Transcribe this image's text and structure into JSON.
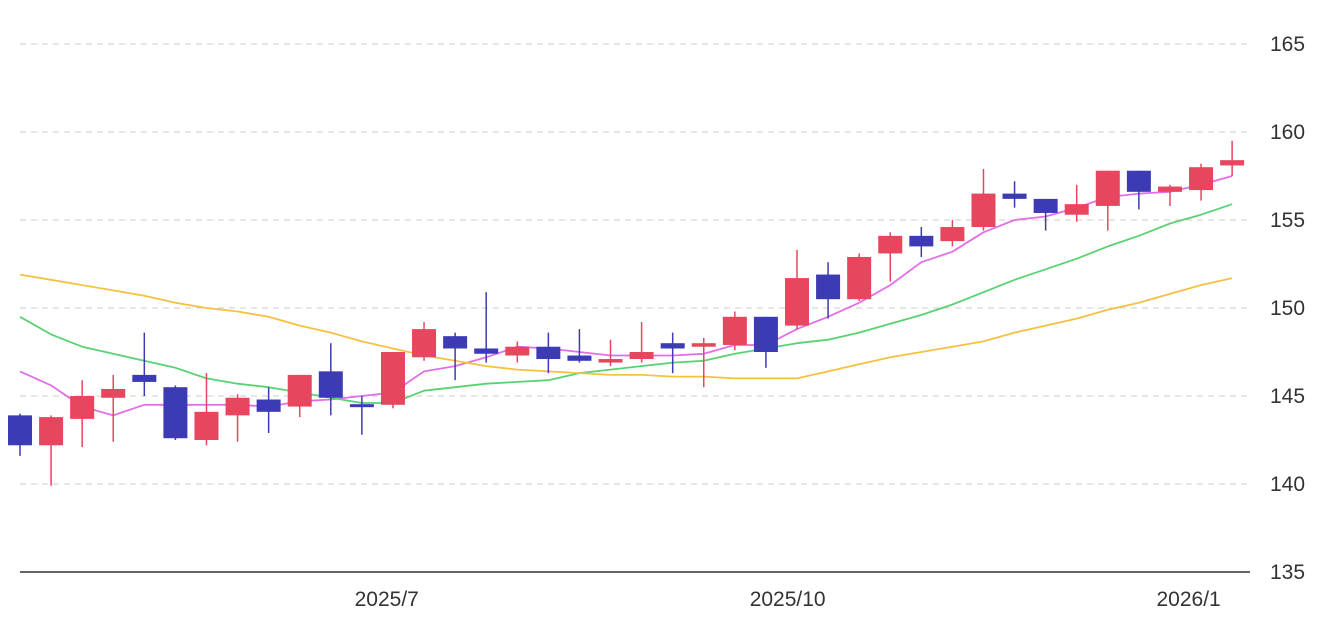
{
  "chart_data": {
    "type": "candlestick",
    "y_axis": {
      "position": "right",
      "ylim": [
        135,
        165
      ],
      "ticks": [
        "135",
        "140",
        "145",
        "150",
        "155",
        "160",
        "165"
      ]
    },
    "x_axis": {
      "ticks": [
        {
          "label": "2025/7",
          "index": 11.8
        },
        {
          "label": "2025/10",
          "index": 24.7
        },
        {
          "label": "2026/1",
          "index": 37.6
        }
      ]
    },
    "grid": {
      "horizontal": true,
      "style": "dashed"
    },
    "colors": {
      "up": "#E8455F",
      "down": "#3D3BB3",
      "ma_short": "#E36FE8",
      "ma_mid": "#5AD173",
      "ma_long": "#F5C142",
      "grid": "#CCCCCC",
      "axis": "#333333"
    },
    "candles": [
      {
        "o": 143.9,
        "h": 144.0,
        "l": 141.6,
        "c": 142.2
      },
      {
        "o": 142.2,
        "h": 143.9,
        "l": 139.9,
        "c": 143.8
      },
      {
        "o": 143.7,
        "h": 145.9,
        "l": 142.1,
        "c": 145.0
      },
      {
        "o": 144.9,
        "h": 146.2,
        "l": 142.4,
        "c": 145.4
      },
      {
        "o": 146.2,
        "h": 148.6,
        "l": 145.0,
        "c": 145.8
      },
      {
        "o": 145.5,
        "h": 145.6,
        "l": 142.5,
        "c": 142.6
      },
      {
        "o": 142.5,
        "h": 146.3,
        "l": 142.2,
        "c": 144.1
      },
      {
        "o": 143.9,
        "h": 145.1,
        "l": 142.4,
        "c": 144.9
      },
      {
        "o": 144.8,
        "h": 145.5,
        "l": 142.9,
        "c": 144.1
      },
      {
        "o": 144.4,
        "h": 146.2,
        "l": 143.8,
        "c": 146.2
      },
      {
        "o": 146.4,
        "h": 148.0,
        "l": 143.9,
        "c": 144.9
      },
      {
        "o": 144.5,
        "h": 145.0,
        "l": 142.8,
        "c": 144.4
      },
      {
        "o": 144.5,
        "h": 147.5,
        "l": 144.3,
        "c": 147.5
      },
      {
        "o": 147.2,
        "h": 149.2,
        "l": 147.0,
        "c": 148.8
      },
      {
        "o": 148.4,
        "h": 148.6,
        "l": 145.9,
        "c": 147.7
      },
      {
        "o": 147.7,
        "h": 150.9,
        "l": 146.9,
        "c": 147.4
      },
      {
        "o": 147.3,
        "h": 148.1,
        "l": 146.9,
        "c": 147.8
      },
      {
        "o": 147.8,
        "h": 148.6,
        "l": 146.3,
        "c": 147.1
      },
      {
        "o": 147.3,
        "h": 148.8,
        "l": 146.9,
        "c": 147.0
      },
      {
        "o": 146.9,
        "h": 148.2,
        "l": 146.7,
        "c": 147.1
      },
      {
        "o": 147.1,
        "h": 149.2,
        "l": 146.9,
        "c": 147.5
      },
      {
        "o": 148.0,
        "h": 148.6,
        "l": 146.3,
        "c": 147.7
      },
      {
        "o": 147.8,
        "h": 148.3,
        "l": 145.5,
        "c": 148.0
      },
      {
        "o": 147.9,
        "h": 149.8,
        "l": 147.6,
        "c": 149.5
      },
      {
        "o": 149.5,
        "h": 149.5,
        "l": 146.6,
        "c": 147.5
      },
      {
        "o": 149.0,
        "h": 153.3,
        "l": 148.8,
        "c": 151.7
      },
      {
        "o": 151.9,
        "h": 152.6,
        "l": 149.4,
        "c": 150.5
      },
      {
        "o": 150.5,
        "h": 153.1,
        "l": 150.4,
        "c": 152.9
      },
      {
        "o": 153.1,
        "h": 154.3,
        "l": 151.5,
        "c": 154.1
      },
      {
        "o": 154.1,
        "h": 154.6,
        "l": 152.9,
        "c": 153.5
      },
      {
        "o": 153.8,
        "h": 155.0,
        "l": 153.5,
        "c": 154.6
      },
      {
        "o": 154.6,
        "h": 157.9,
        "l": 154.4,
        "c": 156.5
      },
      {
        "o": 156.5,
        "h": 157.2,
        "l": 155.7,
        "c": 156.2
      },
      {
        "o": 156.2,
        "h": 156.2,
        "l": 154.4,
        "c": 155.4
      },
      {
        "o": 155.3,
        "h": 157.0,
        "l": 154.9,
        "c": 155.9
      },
      {
        "o": 155.8,
        "h": 157.8,
        "l": 154.4,
        "c": 157.8
      },
      {
        "o": 157.8,
        "h": 157.8,
        "l": 155.6,
        "c": 156.6
      },
      {
        "o": 156.6,
        "h": 157.0,
        "l": 155.8,
        "c": 156.9
      },
      {
        "o": 156.7,
        "h": 158.2,
        "l": 156.1,
        "c": 158.0
      },
      {
        "o": 158.1,
        "h": 159.5,
        "l": 157.5,
        "c": 158.4
      }
    ],
    "series": [
      {
        "key": "ma_short",
        "values": [
          146.4,
          145.6,
          144.4,
          143.9,
          144.5,
          144.5,
          144.5,
          144.5,
          144.4,
          144.7,
          144.8,
          145.0,
          145.2,
          146.4,
          146.7,
          147.2,
          147.8,
          147.7,
          147.5,
          147.3,
          147.3,
          147.3,
          147.4,
          147.9,
          147.9,
          148.8,
          149.5,
          150.3,
          151.3,
          152.6,
          153.2,
          154.3,
          155.0,
          155.2,
          155.7,
          156.3,
          156.5,
          156.6,
          157.0,
          157.5
        ]
      },
      {
        "key": "ma_mid",
        "values": [
          149.5,
          148.5,
          147.8,
          147.4,
          147.0,
          146.6,
          146.0,
          145.7,
          145.5,
          145.2,
          144.9,
          144.6,
          144.6,
          145.3,
          145.5,
          145.7,
          145.8,
          145.9,
          146.3,
          146.5,
          146.7,
          146.9,
          147.0,
          147.4,
          147.7,
          148.0,
          148.2,
          148.6,
          149.1,
          149.6,
          150.2,
          150.9,
          151.6,
          152.2,
          152.8,
          153.5,
          154.1,
          154.8,
          155.3,
          155.9
        ]
      },
      {
        "key": "ma_long",
        "values": [
          151.9,
          151.6,
          151.3,
          151.0,
          150.7,
          150.3,
          150.0,
          149.8,
          149.5,
          149.0,
          148.6,
          148.1,
          147.7,
          147.3,
          147.0,
          146.7,
          146.5,
          146.4,
          146.3,
          146.2,
          146.2,
          146.1,
          146.1,
          146.0,
          146.0,
          146.0,
          146.4,
          146.8,
          147.2,
          147.5,
          147.8,
          148.1,
          148.6,
          149.0,
          149.4,
          149.9,
          150.3,
          150.8,
          151.3,
          151.7
        ]
      }
    ]
  }
}
